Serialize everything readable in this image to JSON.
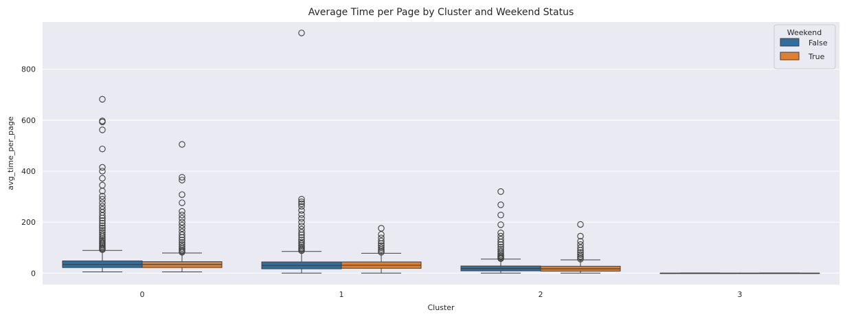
{
  "chart_data": {
    "type": "box",
    "title": "Average Time per Page by Cluster and Weekend Status",
    "xlabel": "Cluster",
    "ylabel": "avg_time_per_page",
    "categories": [
      "0",
      "1",
      "2",
      "3"
    ],
    "ylim": [
      -45,
      985
    ],
    "yticks": [
      0,
      200,
      400,
      600,
      800
    ],
    "grid": true,
    "legend": {
      "title": "Weekend",
      "position": "top-right",
      "entries": [
        "False",
        "True"
      ]
    },
    "series": [
      {
        "name": "False",
        "color": "#2f6f9f",
        "boxes": [
          {
            "category": "0",
            "whislo": 5,
            "q1": 22,
            "med": 34,
            "q3": 48,
            "whishi": 89,
            "fliers": [
              92,
              96,
              100,
              105,
              110,
              115,
              120,
              126,
              132,
              138,
              145,
              152,
              160,
              168,
              177,
              186,
              196,
              206,
              216,
              226,
              238,
              250,
              262,
              276,
              290,
              302,
              322,
              345,
              372,
              400,
              415,
              487,
              562,
              593,
              597,
              682
            ]
          },
          {
            "category": "1",
            "whislo": 0,
            "q1": 17,
            "med": 30,
            "q3": 44,
            "whishi": 85,
            "fliers": [
              88,
              92,
              97,
              102,
              108,
              115,
              122,
              130,
              140,
              150,
              160,
              172,
              185,
              200,
              215,
              230,
              246,
              262,
              272,
              280,
              290,
              942
            ]
          },
          {
            "category": "2",
            "whislo": 0,
            "q1": 9,
            "med": 18,
            "q3": 28,
            "whishi": 55,
            "fliers": [
              57,
              60,
              64,
              68,
              73,
              79,
              86,
              94,
              102,
              112,
              122,
              133,
              145,
              158,
              190,
              228,
              268,
              320
            ]
          },
          {
            "category": "3",
            "whislo": 0,
            "q1": 0,
            "med": 0,
            "q3": 0,
            "whishi": 0,
            "fliers": []
          }
        ]
      },
      {
        "name": "True",
        "color": "#e07f30",
        "boxes": [
          {
            "category": "0",
            "whislo": 5,
            "q1": 22,
            "med": 34,
            "q3": 45,
            "whishi": 79,
            "fliers": [
              82,
              86,
              91,
              97,
              104,
              112,
              120,
              130,
              140,
              150,
              162,
              175,
              188,
              200,
              215,
              228,
              242,
              276,
              308,
              365,
              376,
              505
            ]
          },
          {
            "category": "1",
            "whislo": 0,
            "q1": 19,
            "med": 31,
            "q3": 44,
            "whishi": 78,
            "fliers": [
              82,
              87,
              93,
              100,
              108,
              116,
              126,
              138,
              152,
              176
            ]
          },
          {
            "category": "2",
            "whislo": 0,
            "q1": 8,
            "med": 17,
            "q3": 27,
            "whishi": 52,
            "fliers": [
              55,
              60,
              66,
              73,
              81,
              90,
              100,
              112,
              125,
              145,
              191
            ]
          },
          {
            "category": "3",
            "whislo": 0,
            "q1": 0,
            "med": 0,
            "q3": 0,
            "whishi": 0,
            "fliers": []
          }
        ]
      }
    ]
  }
}
